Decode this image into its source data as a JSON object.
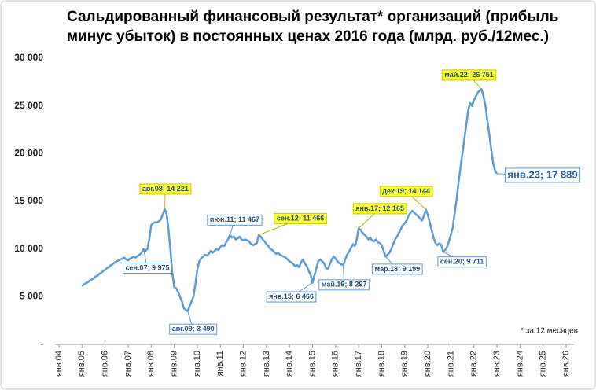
{
  "chart_data": {
    "type": "line",
    "title": [
      "Сальдированный финансовый результат* организаций (прибыль",
      "минус убыток) в постоянных ценах 2016 года (млрд. руб./12мес.)"
    ],
    "footnote": "* за 12 месяцев",
    "categories": [
      "янв.04",
      null,
      null,
      null,
      null,
      null,
      null,
      null,
      null,
      null,
      null,
      null,
      "янв.05",
      null,
      null,
      null,
      null,
      null,
      null,
      null,
      null,
      null,
      null,
      null,
      "янв.06",
      null,
      null,
      null,
      null,
      null,
      null,
      null,
      null,
      null,
      null,
      null,
      "янв.07",
      null,
      null,
      null,
      null,
      null,
      null,
      null,
      null,
      null,
      null,
      null,
      "янв.08",
      null,
      null,
      null,
      null,
      null,
      null,
      null,
      null,
      null,
      null,
      null,
      "янв.09",
      null,
      null,
      null,
      null,
      null,
      null,
      null,
      null,
      null,
      null,
      null,
      "янв.10",
      null,
      null,
      null,
      null,
      null,
      null,
      null,
      null,
      null,
      null,
      null,
      "янв.11",
      null,
      null,
      null,
      null,
      null,
      null,
      null,
      null,
      null,
      null,
      null,
      "янв.12",
      null,
      null,
      null,
      null,
      null,
      null,
      null,
      null,
      null,
      null,
      null,
      "янв.13",
      null,
      null,
      null,
      null,
      null,
      null,
      null,
      null,
      null,
      null,
      null,
      "янв.14",
      null,
      null,
      null,
      null,
      null,
      null,
      null,
      null,
      null,
      null,
      null,
      "янв.15",
      null,
      null,
      null,
      null,
      null,
      null,
      null,
      null,
      null,
      null,
      null,
      "янв.16",
      null,
      null,
      null,
      null,
      null,
      null,
      null,
      null,
      null,
      null,
      null,
      "янв.17",
      null,
      null,
      null,
      null,
      null,
      null,
      null,
      null,
      null,
      null,
      null,
      "янв.18",
      null,
      null,
      null,
      null,
      null,
      null,
      null,
      null,
      null,
      null,
      null,
      "янв.19",
      null,
      null,
      null,
      null,
      null,
      null,
      null,
      null,
      null,
      null,
      null,
      "янв.20",
      null,
      null,
      null,
      null,
      null,
      null,
      null,
      null,
      null,
      null,
      null,
      "янв.21",
      null,
      null,
      null,
      null,
      null,
      null,
      null,
      null,
      null,
      null,
      null,
      "янв.22",
      null,
      null,
      null,
      null,
      null,
      null,
      null,
      null,
      null,
      null,
      null,
      "янв.23",
      null,
      null,
      null,
      null,
      null,
      null,
      null,
      null,
      null,
      null,
      null,
      "янв.24",
      null,
      null,
      null,
      null,
      null,
      null,
      null,
      null,
      null,
      null,
      null,
      "янв.25",
      null,
      null,
      null,
      null,
      null,
      null,
      null,
      null,
      null,
      null,
      null,
      "янв.26"
    ],
    "values": [
      null,
      null,
      null,
      null,
      null,
      null,
      null,
      null,
      null,
      null,
      null,
      null,
      6100,
      6300,
      6400,
      6500,
      6700,
      6800,
      6900,
      7100,
      7200,
      7400,
      7500,
      7700,
      7800,
      8000,
      8100,
      8300,
      8400,
      8600,
      8700,
      8800,
      8900,
      9000,
      9100,
      8900,
      8800,
      9000,
      9100,
      9200,
      9100,
      9300,
      9400,
      9600,
      9975,
      9800,
      10000,
      11000,
      12500,
      12700,
      12800,
      12800,
      12900,
      13100,
      13600,
      14221,
      13700,
      12000,
      10000,
      7500,
      6000,
      5900,
      5500,
      5000,
      4500,
      3800,
      3600,
      3490,
      4000,
      4500,
      5000,
      6300,
      7800,
      8700,
      9000,
      9200,
      9400,
      9300,
      9500,
      9800,
      9600,
      9800,
      10000,
      9900,
      10200,
      10400,
      10300,
      10700,
      11000,
      11467,
      11200,
      11300,
      11000,
      11100,
      11300,
      11000,
      10900,
      11000,
      10900,
      10800,
      10500,
      10400,
      10500,
      10600,
      11466,
      11300,
      11000,
      10800,
      10500,
      10300,
      10000,
      9900,
      9700,
      9500,
      9600,
      9400,
      9300,
      9200,
      9100,
      8900,
      8700,
      8600,
      8400,
      8200,
      8300,
      8100,
      8600,
      8900,
      8500,
      8200,
      7700,
      7300,
      6466,
      7200,
      8000,
      8700,
      8900,
      8700,
      8500,
      8000,
      7900,
      8400,
      8900,
      9200,
      9000,
      8700,
      8500,
      8400,
      8297,
      8900,
      9400,
      9700,
      10100,
      10500,
      10300,
      11000,
      12165,
      12000,
      11700,
      11500,
      11300,
      11000,
      11200,
      10900,
      10800,
      11000,
      10700,
      10600,
      10400,
      9800,
      9199,
      9400,
      9600,
      10000,
      10500,
      11000,
      11300,
      11700,
      12100,
      12500,
      12700,
      13000,
      13500,
      13800,
      14000,
      13800,
      13600,
      13400,
      13200,
      13000,
      13500,
      14144,
      13600,
      12800,
      12000,
      11200,
      10600,
      10400,
      10600,
      10400,
      9711,
      9900,
      10200,
      10800,
      11500,
      12300,
      13800,
      15200,
      17000,
      18500,
      20000,
      21500,
      23000,
      24500,
      25300,
      25000,
      25600,
      26000,
      26400,
      26600,
      26751,
      26000,
      25000,
      23500,
      22000,
      20500,
      19000,
      18200,
      17889,
      null,
      null,
      null,
      null,
      null,
      null,
      null,
      null,
      null,
      null,
      null,
      null,
      null,
      null,
      null,
      null,
      null,
      null,
      null,
      null,
      null,
      null,
      null,
      null,
      null,
      null,
      null,
      null,
      null,
      null,
      null,
      null,
      null,
      null,
      null,
      null
    ],
    "value_labels": [
      null,
      null,
      null,
      null,
      null,
      null,
      null,
      null,
      null,
      null,
      null,
      null,
      null,
      null,
      null,
      null,
      null,
      null,
      null,
      null,
      null,
      null,
      null,
      null,
      null,
      null,
      null,
      null,
      null,
      null,
      null,
      null,
      null,
      null,
      null,
      null,
      null,
      null,
      null,
      null,
      null,
      null,
      null,
      null,
      "сен.07;  9 975",
      null,
      null,
      null,
      null,
      null,
      null,
      null,
      null,
      null,
      null,
      "авг.08;  14 221",
      null,
      null,
      null,
      null,
      null,
      null,
      null,
      null,
      null,
      null,
      null,
      "авг.09;  3 490",
      null,
      null,
      null,
      null,
      null,
      null,
      null,
      null,
      null,
      null,
      null,
      null,
      null,
      null,
      null,
      null,
      null,
      null,
      null,
      null,
      null,
      "июн.11;  11 467",
      null,
      null,
      null,
      null,
      null,
      null,
      null,
      null,
      null,
      null,
      null,
      null,
      null,
      null,
      "сен.12;  11 466",
      null,
      null,
      null,
      null,
      null,
      null,
      null,
      null,
      null,
      null,
      null,
      null,
      null,
      null,
      null,
      null,
      null,
      null,
      null,
      null,
      null,
      null,
      null,
      null,
      null,
      null,
      null,
      "янв.15;  6 466",
      null,
      null,
      null,
      null,
      null,
      null,
      null,
      null,
      null,
      null,
      null,
      null,
      null,
      null,
      null,
      "май.16;  8 297",
      null,
      null,
      null,
      null,
      null,
      null,
      null,
      "янв.17;  12 165",
      null,
      null,
      null,
      null,
      null,
      null,
      null,
      null,
      null,
      null,
      null,
      null,
      null,
      "мар.18;  9 199",
      null,
      null,
      null,
      null,
      null,
      null,
      null,
      null,
      null,
      null,
      null,
      null,
      null,
      null,
      null,
      null,
      null,
      null,
      null,
      null,
      "дек.19;  14 144",
      null,
      null,
      null,
      null,
      null,
      null,
      null,
      null,
      "сен.20;  9 711",
      null,
      null,
      null,
      null,
      null,
      null,
      null,
      null,
      null,
      null,
      null,
      null,
      null,
      null,
      null,
      null,
      null,
      null,
      null,
      "май.22;  26 751",
      null,
      null,
      null,
      null,
      null,
      null,
      null,
      "янв.23;  17 889",
      null,
      null,
      null,
      null,
      null,
      null,
      null,
      null,
      null,
      null,
      null,
      null,
      null,
      null,
      null,
      null,
      null,
      null,
      null,
      null,
      null,
      null,
      null,
      null,
      null,
      null,
      null,
      null,
      null,
      null,
      null,
      null,
      null,
      null,
      null,
      null
    ],
    "color": "#5b9bd5",
    "ylim": [
      0,
      30000
    ],
    "yticks": [
      {
        "value": 0,
        "label": "-"
      },
      {
        "value": 5000,
        "label": "5 000"
      },
      {
        "value": 10000,
        "label": "10 000"
      },
      {
        "value": 15000,
        "label": "15 000"
      },
      {
        "value": 20000,
        "label": "20 000"
      },
      {
        "value": 25000,
        "label": "25 000"
      },
      {
        "value": 30000,
        "label": "30 000"
      }
    ],
    "grid": false
  }
}
